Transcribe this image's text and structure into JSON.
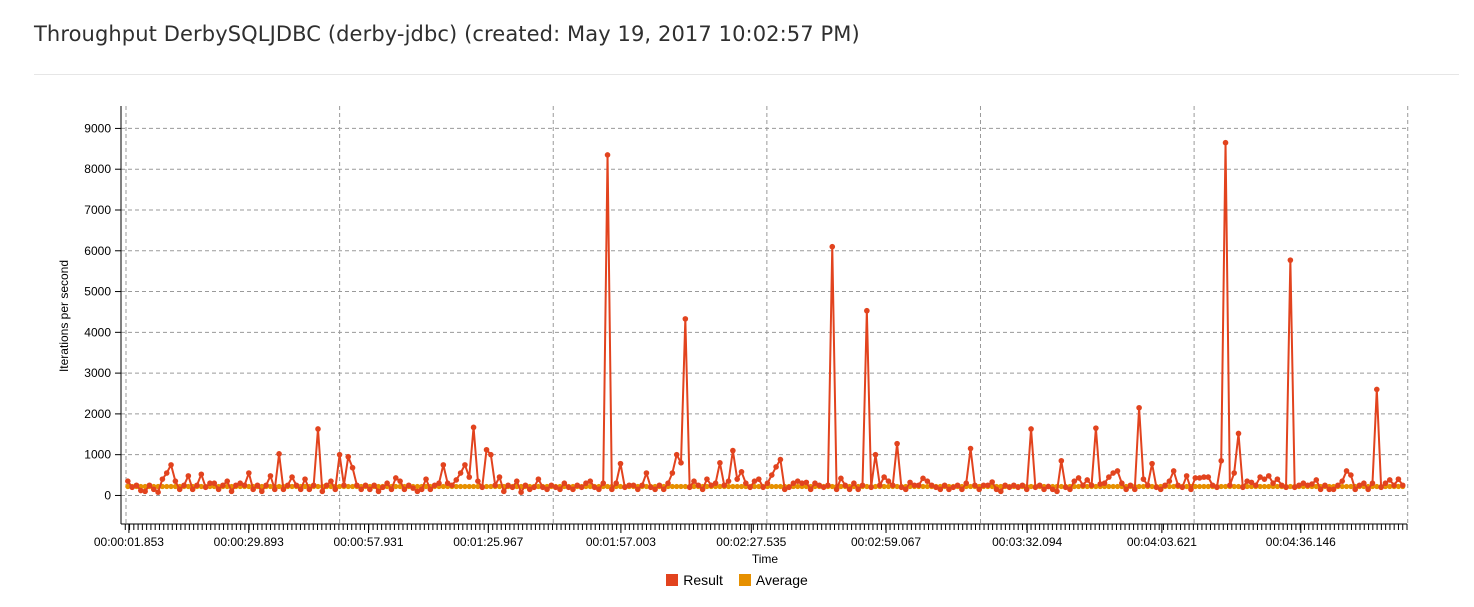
{
  "header": {
    "title": "Throughput DerbySQLJDBC (derby-jdbc) (created: May 19, 2017 10:02:57 PM)"
  },
  "colors": {
    "result": "#e2431e",
    "average": "#e69000",
    "grid": "#9a9a9a",
    "divider": "#e6e6e6"
  },
  "chart_data": {
    "type": "line",
    "xlabel": "Time",
    "ylabel": "Iterations per second",
    "ylim": [
      -700,
      9550
    ],
    "yticks": [
      0,
      1000,
      2000,
      3000,
      4000,
      5000,
      6000,
      7000,
      8000,
      9000
    ],
    "xlim_seconds": [
      0,
      301
    ],
    "xticks": [
      {
        "label": "00:00:01.853",
        "t": 1.853
      },
      {
        "label": "00:00:29.893",
        "t": 29.893
      },
      {
        "label": "00:00:57.931",
        "t": 57.931
      },
      {
        "label": "00:01:25.967",
        "t": 85.967
      },
      {
        "label": "00:01:57.003",
        "t": 117.003
      },
      {
        "label": "00:02:27.535",
        "t": 147.535
      },
      {
        "label": "00:02:59.067",
        "t": 179.067
      },
      {
        "label": "00:03:32.094",
        "t": 212.094
      },
      {
        "label": "00:04:03.621",
        "t": 243.621
      },
      {
        "label": "00:04:36.146",
        "t": 276.146
      }
    ],
    "grid_lines_seconds": [
      0,
      50,
      100,
      150,
      200,
      250,
      300
    ],
    "legend": {
      "position": "bottom-center"
    },
    "grid": true,
    "series": [
      {
        "name": "Result",
        "values": [
          350,
          200,
          250,
          120,
          100,
          250,
          150,
          80,
          400,
          550,
          750,
          350,
          150,
          250,
          480,
          150,
          250,
          520,
          200,
          300,
          300,
          150,
          250,
          350,
          100,
          250,
          300,
          250,
          550,
          150,
          250,
          100,
          250,
          480,
          150,
          1020,
          150,
          250,
          450,
          250,
          150,
          400,
          150,
          250,
          1630,
          100,
          250,
          350,
          150,
          1000,
          250,
          950,
          680,
          250,
          150,
          250,
          150,
          250,
          100,
          200,
          300,
          150,
          430,
          350,
          150,
          250,
          180,
          100,
          150,
          400,
          150,
          250,
          300,
          750,
          300,
          250,
          380,
          550,
          750,
          450,
          1670,
          350,
          200,
          1120,
          1000,
          250,
          450,
          100,
          250,
          200,
          350,
          80,
          250,
          150,
          200,
          400,
          200,
          150,
          250,
          200,
          150,
          300,
          200,
          150,
          250,
          200,
          300,
          350,
          200,
          150,
          300,
          8350,
          150,
          300,
          780,
          200,
          250,
          250,
          150,
          250,
          550,
          200,
          150,
          250,
          150,
          300,
          550,
          1000,
          800,
          4330,
          200,
          350,
          250,
          150,
          400,
          250,
          300,
          800,
          250,
          350,
          1100,
          400,
          580,
          300,
          200,
          350,
          400,
          200,
          300,
          500,
          700,
          880,
          150,
          200,
          300,
          350,
          300,
          320,
          150,
          300,
          250,
          200,
          250,
          6100,
          150,
          420,
          250,
          150,
          300,
          150,
          250,
          4530,
          200,
          1000,
          250,
          450,
          350,
          250,
          1270,
          200,
          150,
          320,
          250,
          250,
          420,
          350,
          250,
          200,
          150,
          250,
          150,
          200,
          250,
          150,
          300,
          1150,
          250,
          150,
          250,
          250,
          330,
          150,
          100,
          250,
          200,
          250,
          200,
          250,
          150,
          1630,
          200,
          250,
          150,
          220,
          150,
          100,
          850,
          200,
          150,
          350,
          430,
          250,
          380,
          250,
          1650,
          280,
          300,
          450,
          550,
          600,
          300,
          150,
          250,
          150,
          2150,
          400,
          250,
          780,
          200,
          150,
          250,
          350,
          600,
          250,
          200,
          480,
          150,
          430,
          430,
          450,
          450,
          250,
          200,
          850,
          8650,
          250,
          550,
          1520,
          200,
          350,
          320,
          250,
          450,
          400,
          480,
          300,
          400,
          250,
          200,
          5770,
          200,
          250,
          300,
          250,
          280,
          380,
          150,
          250,
          150,
          150,
          250,
          350,
          600,
          500,
          150,
          250,
          300,
          150,
          300,
          2600,
          200,
          300,
          380,
          250,
          400,
          250
        ]
      },
      {
        "name": "Average",
        "constant": 220
      }
    ]
  }
}
